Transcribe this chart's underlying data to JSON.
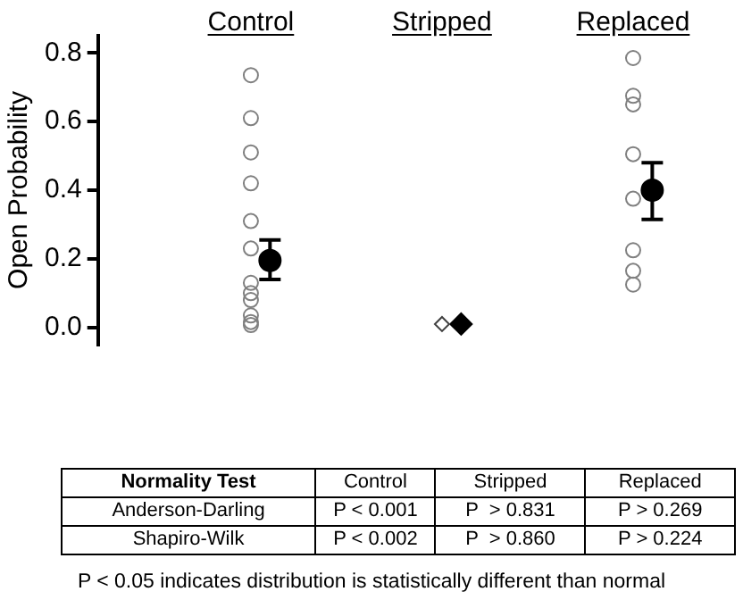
{
  "chart_data": {
    "type": "scatter",
    "ylabel": "Open Probability",
    "categories": [
      "Control",
      "Stripped",
      "Replaced"
    ],
    "ylim": [
      -0.05,
      0.85
    ],
    "yticks": [
      {
        "value": 0,
        "label": "0.0"
      },
      {
        "value": 0.2,
        "label": "0.2"
      },
      {
        "value": 0.4,
        "label": "0.4"
      },
      {
        "value": 0.6,
        "label": "0.6"
      },
      {
        "value": 0.8,
        "label": "0.8"
      }
    ],
    "grid": false,
    "legend": false,
    "series": [
      {
        "color": "#808080",
        "marker": "circle",
        "x": [
          "Control",
          "Control",
          "Control",
          "Control",
          "Control",
          "Control",
          "Control",
          "Control",
          "Control",
          "Control",
          "Control",
          "Control",
          "Replaced",
          "Replaced",
          "Replaced",
          "Replaced",
          "Replaced",
          "Replaced",
          "Replaced",
          "Replaced"
        ],
        "values": [
          0.735,
          0.61,
          0.51,
          0.42,
          0.31,
          0.23,
          0.13,
          0.1,
          0.08,
          0.035,
          0.016,
          0.007,
          0.785,
          0.675,
          0.65,
          0.505,
          0.375,
          0.225,
          0.165,
          0.125
        ]
      },
      {
        "color": "#404040",
        "marker": "diamond",
        "x": [
          "Stripped"
        ],
        "values": [
          0.01
        ]
      },
      {
        "color": "#000000",
        "marker": "circle",
        "x": [
          "Control",
          "Replaced"
        ],
        "values": [
          0.195,
          0.4
        ],
        "errors": [
          [
            0.14,
            0.255
          ],
          [
            0.315,
            0.48
          ]
        ]
      },
      {
        "color": "#000000",
        "marker": "diamond",
        "x": [
          "Stripped"
        ],
        "values": [
          0.01
        ]
      }
    ],
    "annotations": [
      "Normality Test",
      "Control",
      "Stripped",
      "Replaced",
      "Anderson-Darling",
      "P < 0.001",
      "P  > 0.831",
      "P > 0.269",
      "Shapiro-Wilk",
      "P < 0.002",
      "P  > 0.860",
      "P > 0.224",
      "P < 0.05 indicates distribution is statistically different than normal"
    ]
  }
}
